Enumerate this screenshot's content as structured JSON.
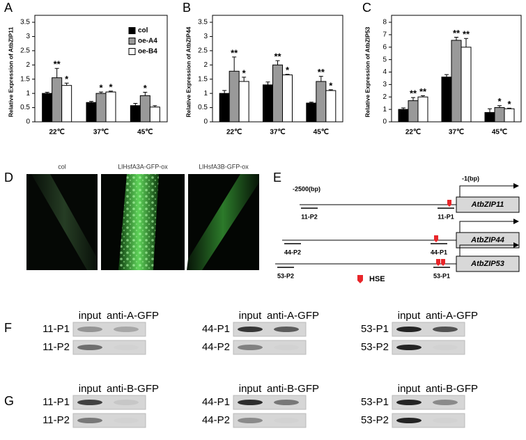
{
  "chart_data": [
    {
      "type": "bar",
      "panel": "A",
      "ylabel": "Relative Expression of AtbZIP11",
      "categories": [
        "22℃",
        "37℃",
        "45℃"
      ],
      "ylim": [
        0,
        3.5
      ],
      "yticks": [
        0,
        0.5,
        1,
        1.5,
        2,
        2.5,
        3,
        3.5
      ],
      "legend": "top-right",
      "series": [
        {
          "name": "col",
          "color": "#000000",
          "values": [
            1.0,
            0.68,
            0.57
          ],
          "errors": [
            0.04,
            0.04,
            0.08
          ],
          "significance": [
            null,
            null,
            null
          ]
        },
        {
          "name": "oe-A4",
          "color": "#999999",
          "values": [
            1.55,
            1.0,
            0.92
          ],
          "errors": [
            0.33,
            0.05,
            0.12
          ],
          "significance": [
            "**",
            "*",
            "*"
          ]
        },
        {
          "name": "oe-B4",
          "color": "#ffffff",
          "values": [
            1.28,
            1.05,
            0.52
          ],
          "errors": [
            0.08,
            0.03,
            0.05
          ],
          "significance": [
            "*",
            "*",
            null
          ]
        }
      ]
    },
    {
      "type": "bar",
      "panel": "B",
      "ylabel": "Relative Expression of AtbZIP44",
      "categories": [
        "22℃",
        "37℃",
        "45℃"
      ],
      "ylim": [
        0,
        3.5
      ],
      "yticks": [
        0,
        0.5,
        1,
        1.5,
        2,
        2.5,
        3,
        3.5
      ],
      "series": [
        {
          "color": "#000000",
          "values": [
            1.0,
            1.3,
            0.66
          ],
          "errors": [
            0.1,
            0.1,
            0.03
          ],
          "significance": [
            null,
            null,
            null
          ]
        },
        {
          "color": "#999999",
          "values": [
            1.78,
            2.0,
            1.42
          ],
          "errors": [
            0.5,
            0.15,
            0.18
          ],
          "significance": [
            "**",
            "**",
            "**"
          ]
        },
        {
          "color": "#ffffff",
          "values": [
            1.42,
            1.65,
            1.1
          ],
          "errors": [
            0.15,
            0.02,
            0.03
          ],
          "significance": [
            "*",
            "*",
            "*"
          ]
        }
      ]
    },
    {
      "type": "bar",
      "panel": "C",
      "ylabel": "Relative Expression of AtbZIP53",
      "categories": [
        "22℃",
        "37℃",
        "45℃"
      ],
      "ylim": [
        0,
        8
      ],
      "yticks": [
        0,
        1,
        2,
        3,
        4,
        5,
        6,
        7,
        8
      ],
      "series": [
        {
          "color": "#000000",
          "values": [
            1.0,
            3.6,
            0.75
          ],
          "errors": [
            0.12,
            0.2,
            0.3
          ],
          "significance": [
            null,
            null,
            null
          ]
        },
        {
          "color": "#999999",
          "values": [
            1.7,
            6.55,
            1.15
          ],
          "errors": [
            0.25,
            0.25,
            0.15
          ],
          "significance": [
            "**",
            "**",
            "*"
          ]
        },
        {
          "color": "#ffffff",
          "values": [
            2.0,
            6.0,
            1.05
          ],
          "errors": [
            0.1,
            0.7,
            0.05
          ],
          "significance": [
            "**",
            "**",
            "*"
          ]
        }
      ]
    }
  ],
  "micrographs": {
    "panel": "D",
    "titles": [
      "col",
      "LlHsfA3A-GFP-ox",
      "LlHsfA3B-GFP-ox"
    ]
  },
  "promoter_diagram": {
    "panel": "E",
    "start_label": "-2500(bp)",
    "end_label": "-1(bp)",
    "legend": "HSE",
    "genes": [
      {
        "name": "AtbZIP11",
        "probes": [
          "11-P2",
          "11-P1"
        ]
      },
      {
        "name": "AtbZIP44",
        "probes": [
          "44-P2",
          "44-P1"
        ]
      },
      {
        "name": "AtbZIP53",
        "probes": [
          "53-P2",
          "53-P1"
        ]
      }
    ]
  },
  "chip": [
    {
      "panel": "F",
      "columns": [
        "input",
        "anti-A-GFP"
      ],
      "blots": [
        {
          "rows": [
            "11-P1",
            "11-P2"
          ]
        },
        {
          "rows": [
            "44-P1",
            "44-P2"
          ]
        },
        {
          "rows": [
            "53-P1",
            "53-P2"
          ]
        }
      ]
    },
    {
      "panel": "G",
      "columns": [
        "input",
        "anti-B-GFP"
      ],
      "blots": [
        {
          "rows": [
            "11-P1",
            "11-P2"
          ]
        },
        {
          "rows": [
            "44-P1",
            "44-P2"
          ]
        },
        {
          "rows": [
            "53-P1",
            "53-P2"
          ]
        }
      ]
    }
  ]
}
